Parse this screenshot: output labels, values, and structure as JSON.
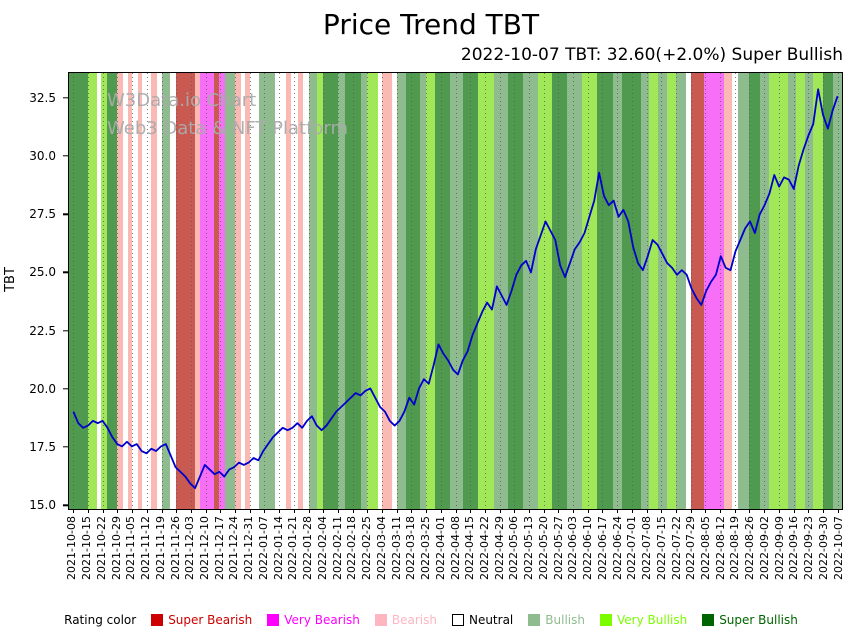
{
  "chart_data": {
    "type": "line",
    "title": "Price Trend TBT",
    "subtitle": "2022-10-07 TBT: 32.60(+2.0%) Super Bullish",
    "watermark": {
      "line1": "W3Data.io Chart",
      "line2": "Web3 Data & NFT Platform"
    },
    "ylabel": "TBT",
    "ylim": [
      14.8,
      33.6
    ],
    "y_ticks": [
      "15.0",
      "17.5",
      "20.0",
      "22.5",
      "25.0",
      "27.5",
      "30.0",
      "32.5"
    ],
    "x_tick_labels": [
      "2021-10-08",
      "2021-10-15",
      "2021-10-22",
      "2021-10-29",
      "2021-11-05",
      "2021-11-12",
      "2021-11-19",
      "2021-11-26",
      "2021-12-03",
      "2021-12-10",
      "2021-12-17",
      "2021-12-24",
      "2021-12-31",
      "2022-01-07",
      "2022-01-14",
      "2022-01-21",
      "2022-01-28",
      "2022-02-04",
      "2022-02-11",
      "2022-02-18",
      "2022-02-25",
      "2022-03-04",
      "2022-03-11",
      "2022-03-18",
      "2022-03-25",
      "2022-04-01",
      "2022-04-08",
      "2022-04-15",
      "2022-04-22",
      "2022-04-29",
      "2022-05-06",
      "2022-05-13",
      "2022-05-20",
      "2022-05-27",
      "2022-06-03",
      "2022-06-10",
      "2022-06-17",
      "2022-06-24",
      "2022-07-01",
      "2022-07-08",
      "2022-07-15",
      "2022-07-22",
      "2022-07-29",
      "2022-08-05",
      "2022-08-12",
      "2022-08-19",
      "2022-08-26",
      "2022-09-02",
      "2022-09-09",
      "2022-09-16",
      "2022-09-23",
      "2022-09-30",
      "2022-10-07"
    ],
    "latest": {
      "date": "2022-10-07",
      "value": 32.6,
      "change_pct": "+2.0%",
      "rating": "Super Bullish"
    },
    "grid": "vertical-dotted",
    "legend_position": "bottom-center",
    "legend_title": "Rating color",
    "legend_order": [
      "super_bearish",
      "very_bearish",
      "bearish",
      "neutral",
      "bullish",
      "very_bullish",
      "super_bullish"
    ],
    "rating_colors": {
      "super_bearish": {
        "label": "Super Bearish",
        "swatch": "#cc0000",
        "band": "#c95a52",
        "text": "#cc0000"
      },
      "very_bearish": {
        "label": "Very Bearish",
        "swatch": "#ff00ff",
        "band": "#f76ef7",
        "text": "#ff00ff"
      },
      "bearish": {
        "label": "Bearish",
        "swatch": "#ffb6c1",
        "band": "#fbb9b4",
        "text": "#ffb6c1"
      },
      "neutral": {
        "label": "Neutral",
        "swatch": "#ffffff",
        "band": "#ffffff",
        "text": "#000000"
      },
      "bullish": {
        "label": "Bullish",
        "swatch": "#8fbc8f",
        "band": "#8fbc8f",
        "text": "#8fbc8f"
      },
      "very_bullish": {
        "label": "Very Bullish",
        "swatch": "#7cfc00",
        "band": "#a0e858",
        "text": "#7cfc00"
      },
      "super_bullish": {
        "label": "Super Bullish",
        "swatch": "#006400",
        "band": "#4f9a4f",
        "text": "#006400"
      }
    },
    "bands": [
      [
        -0.3,
        1.0,
        "super_bullish"
      ],
      [
        1.0,
        1.6,
        "very_bullish"
      ],
      [
        1.6,
        1.9,
        "neutral"
      ],
      [
        1.9,
        2.3,
        "very_bullish"
      ],
      [
        2.3,
        3.0,
        "super_bullish"
      ],
      [
        3.0,
        3.4,
        "bearish"
      ],
      [
        3.4,
        3.7,
        "neutral"
      ],
      [
        3.7,
        4.0,
        "bearish"
      ],
      [
        4.0,
        4.4,
        "neutral"
      ],
      [
        4.4,
        4.7,
        "bearish"
      ],
      [
        4.7,
        5.3,
        "neutral"
      ],
      [
        5.3,
        5.7,
        "bearish"
      ],
      [
        5.7,
        6.0,
        "neutral"
      ],
      [
        6.0,
        6.6,
        "bullish"
      ],
      [
        6.6,
        7.0,
        "neutral"
      ],
      [
        7.0,
        8.3,
        "super_bearish"
      ],
      [
        8.3,
        8.6,
        "bearish"
      ],
      [
        8.6,
        9.6,
        "very_bearish"
      ],
      [
        9.6,
        9.9,
        "super_bearish"
      ],
      [
        9.9,
        10.3,
        "very_bearish"
      ],
      [
        10.3,
        11.0,
        "bullish"
      ],
      [
        11.0,
        11.4,
        "bearish"
      ],
      [
        11.4,
        11.7,
        "neutral"
      ],
      [
        11.7,
        12.0,
        "bearish"
      ],
      [
        12.0,
        12.6,
        "neutral"
      ],
      [
        12.6,
        13.7,
        "bullish"
      ],
      [
        13.7,
        14.5,
        "neutral"
      ],
      [
        14.5,
        14.8,
        "bearish"
      ],
      [
        14.8,
        15.3,
        "neutral"
      ],
      [
        15.3,
        15.6,
        "bearish"
      ],
      [
        15.6,
        16.0,
        "neutral"
      ],
      [
        16.0,
        16.6,
        "bullish"
      ],
      [
        16.6,
        17.0,
        "very_bullish"
      ],
      [
        17.0,
        18.0,
        "super_bullish"
      ],
      [
        18.0,
        18.5,
        "bullish"
      ],
      [
        18.5,
        19.6,
        "super_bullish"
      ],
      [
        19.6,
        20.0,
        "bullish"
      ],
      [
        20.0,
        20.7,
        "very_bullish"
      ],
      [
        20.7,
        21.0,
        "neutral"
      ],
      [
        21.0,
        21.7,
        "bearish"
      ],
      [
        21.7,
        22.0,
        "neutral"
      ],
      [
        22.0,
        22.6,
        "bullish"
      ],
      [
        22.6,
        23.6,
        "super_bullish"
      ],
      [
        23.6,
        24.0,
        "bullish"
      ],
      [
        24.0,
        24.6,
        "very_bullish"
      ],
      [
        24.6,
        25.6,
        "super_bullish"
      ],
      [
        25.6,
        26.5,
        "bullish"
      ],
      [
        26.5,
        27.5,
        "super_bullish"
      ],
      [
        27.5,
        28.6,
        "very_bullish"
      ],
      [
        28.6,
        29.6,
        "bullish"
      ],
      [
        29.6,
        30.6,
        "super_bullish"
      ],
      [
        30.6,
        31.6,
        "bullish"
      ],
      [
        31.6,
        32.6,
        "very_bullish"
      ],
      [
        32.6,
        33.6,
        "super_bullish"
      ],
      [
        33.6,
        34.6,
        "bullish"
      ],
      [
        34.6,
        35.6,
        "very_bullish"
      ],
      [
        35.6,
        36.7,
        "super_bullish"
      ],
      [
        36.7,
        37.3,
        "bullish"
      ],
      [
        37.3,
        38.6,
        "super_bullish"
      ],
      [
        38.6,
        39.2,
        "bullish"
      ],
      [
        39.2,
        39.8,
        "very_bullish"
      ],
      [
        39.8,
        40.4,
        "bullish"
      ],
      [
        40.4,
        41.0,
        "very_bullish"
      ],
      [
        41.0,
        41.7,
        "bullish"
      ],
      [
        41.7,
        42.0,
        "neutral"
      ],
      [
        42.0,
        42.9,
        "super_bearish"
      ],
      [
        42.9,
        44.3,
        "very_bearish"
      ],
      [
        44.3,
        44.8,
        "bearish"
      ],
      [
        44.8,
        45.2,
        "neutral"
      ],
      [
        45.2,
        46.0,
        "bullish"
      ],
      [
        46.0,
        46.7,
        "super_bullish"
      ],
      [
        46.7,
        47.3,
        "bullish"
      ],
      [
        47.3,
        48.6,
        "very_bullish"
      ],
      [
        48.6,
        49.2,
        "bullish"
      ],
      [
        49.2,
        49.8,
        "very_bullish"
      ],
      [
        49.8,
        50.3,
        "bullish"
      ],
      [
        50.3,
        51.0,
        "very_bullish"
      ],
      [
        51.0,
        51.7,
        "super_bullish"
      ],
      [
        51.7,
        52.3,
        "bullish"
      ]
    ],
    "series": {
      "name": "TBT price",
      "color": "#0000cc",
      "values": [
        19.0,
        18.5,
        18.3,
        18.4,
        18.6,
        18.5,
        18.6,
        18.3,
        17.9,
        17.6,
        17.5,
        17.7,
        17.5,
        17.6,
        17.3,
        17.2,
        17.4,
        17.3,
        17.5,
        17.6,
        17.1,
        16.6,
        16.4,
        16.2,
        15.9,
        15.7,
        16.2,
        16.7,
        16.5,
        16.3,
        16.4,
        16.2,
        16.5,
        16.6,
        16.8,
        16.7,
        16.8,
        17.0,
        16.9,
        17.3,
        17.6,
        17.9,
        18.1,
        18.3,
        18.2,
        18.3,
        18.5,
        18.3,
        18.6,
        18.8,
        18.4,
        18.2,
        18.4,
        18.7,
        19.0,
        19.2,
        19.4,
        19.6,
        19.8,
        19.7,
        19.9,
        20.0,
        19.6,
        19.2,
        19.0,
        18.6,
        18.4,
        18.6,
        19.0,
        19.6,
        19.3,
        20.0,
        20.4,
        20.2,
        21.0,
        21.9,
        21.5,
        21.2,
        20.8,
        20.6,
        21.2,
        21.6,
        22.3,
        22.8,
        23.3,
        23.7,
        23.4,
        24.4,
        24.0,
        23.6,
        24.2,
        24.9,
        25.3,
        25.5,
        25.0,
        26.0,
        26.6,
        27.2,
        26.8,
        26.4,
        25.3,
        24.8,
        25.4,
        26.0,
        26.3,
        26.7,
        27.4,
        28.1,
        29.3,
        28.3,
        27.9,
        28.1,
        27.4,
        27.7,
        27.2,
        26.1,
        25.4,
        25.1,
        25.7,
        26.4,
        26.2,
        25.8,
        25.4,
        25.2,
        24.9,
        25.1,
        24.9,
        24.3,
        23.9,
        23.6,
        24.2,
        24.6,
        24.9,
        25.7,
        25.2,
        25.1,
        25.9,
        26.4,
        26.9,
        27.2,
        26.7,
        27.5,
        27.9,
        28.4,
        29.2,
        28.7,
        29.1,
        29.0,
        28.6,
        29.6,
        30.3,
        30.9,
        31.4,
        32.9,
        31.8,
        31.2,
        32.0,
        32.6
      ]
    }
  }
}
